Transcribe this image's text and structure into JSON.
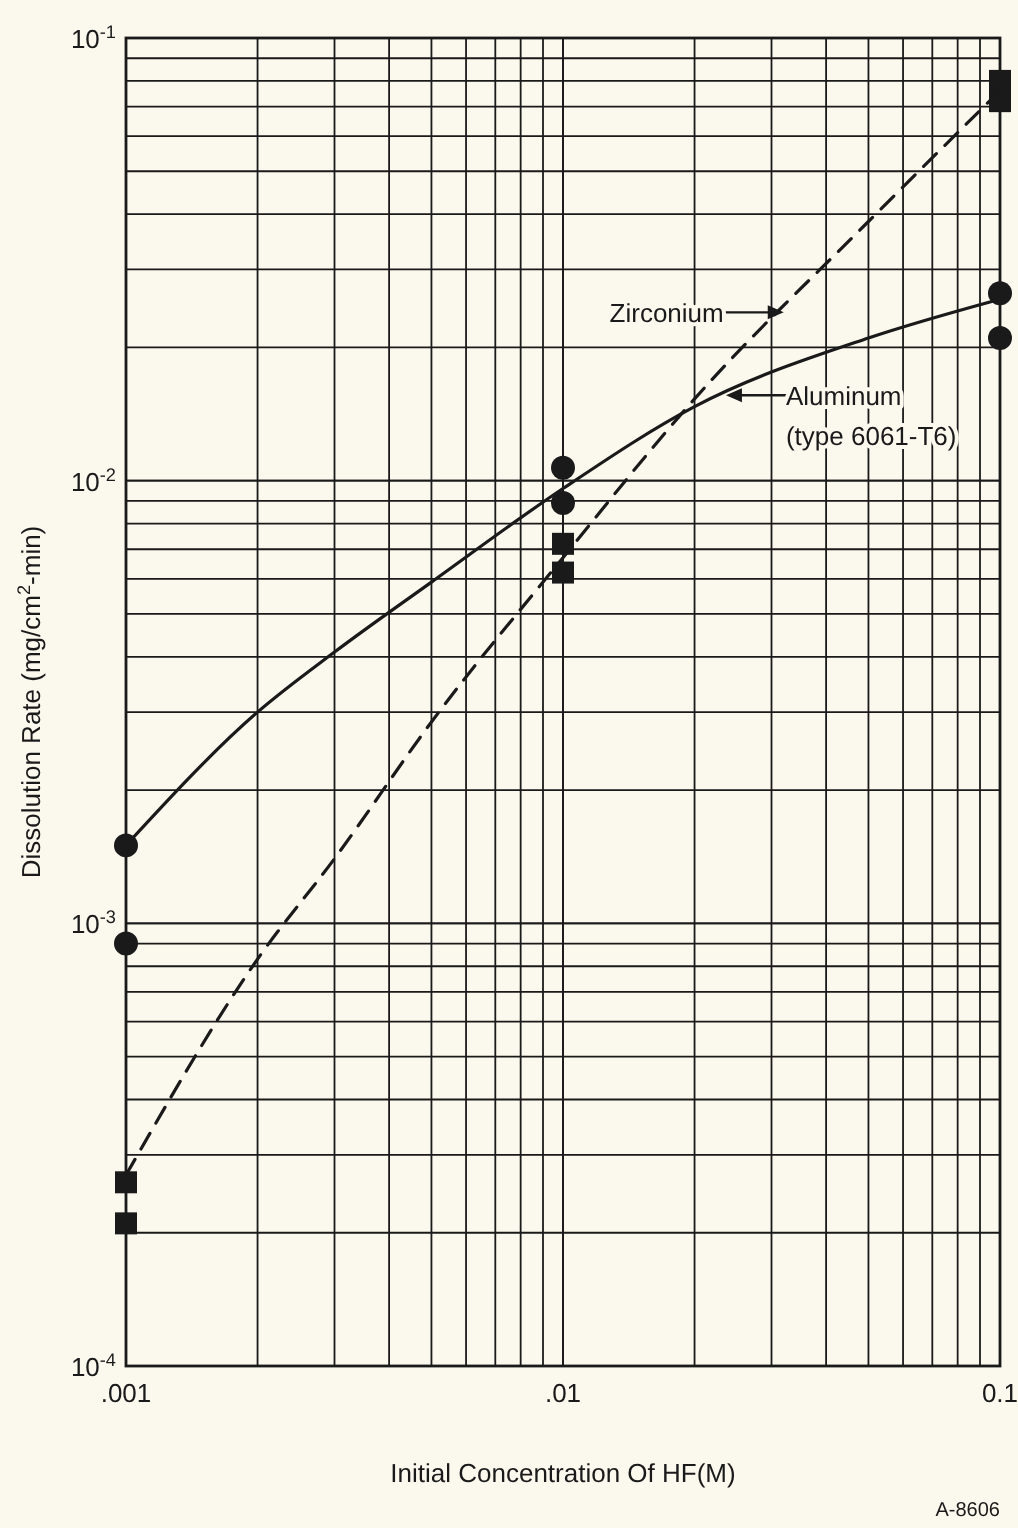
{
  "chart_data": {
    "type": "scatter",
    "xlabel": "Initial Concentration Of HF(M)",
    "ylabel": "Dissolution Rate (mg/cm$^{2}$-min)",
    "log": "xy",
    "grid": true,
    "xlim": [
      0.001,
      0.1
    ],
    "xticks": [
      {
        "value": 0.001,
        "label": ".001"
      },
      {
        "value": 0.01,
        "label": ".01"
      },
      {
        "value": 0.1,
        "label": "0.1"
      }
    ],
    "ylim": [
      0.0001,
      0.1
    ],
    "yticks": [
      {
        "value": 0.0001,
        "label": "10$^{-4}$"
      },
      {
        "value": 0.001,
        "label": "10$^{-3}$"
      },
      {
        "value": 0.01,
        "label": "10$^{-2}$"
      },
      {
        "value": 0.1,
        "label": "10$^{-1}$"
      }
    ],
    "series": [
      {
        "marker": "circle",
        "color": "#1a1a1a",
        "x": [
          0.001,
          0.001,
          0.01,
          0.01,
          0.1,
          0.1
        ],
        "values": [
          0.0015,
          0.0009,
          0.0107,
          0.0089,
          0.0265,
          0.021
        ]
      },
      {
        "type": "line",
        "line_style": "solid",
        "color": "#1a1a1a",
        "x": [
          0.001,
          0.002,
          0.003,
          0.005,
          0.01,
          0.02,
          0.05,
          0.1
        ],
        "values": [
          0.0015,
          0.003,
          0.0041,
          0.0059,
          0.0096,
          0.0147,
          0.021,
          0.0257
        ]
      },
      {
        "marker": "square",
        "color": "#1a1a1a",
        "x": [
          0.001,
          0.001,
          0.01,
          0.01,
          0.1,
          0.1
        ],
        "values": [
          0.00026,
          0.00021,
          0.0072,
          0.0062,
          0.08,
          0.072
        ]
      },
      {
        "type": "line",
        "line_style": "dashed",
        "color": "#1a1a1a",
        "x": [
          0.001,
          0.002,
          0.003,
          0.005,
          0.01,
          0.02,
          0.05,
          0.1
        ],
        "values": [
          0.00027,
          0.00083,
          0.0014,
          0.00285,
          0.0067,
          0.0153,
          0.0385,
          0.076
        ]
      }
    ],
    "annotations": [
      {
        "text": "Zirconium",
        "x": 0.032,
        "y": 0.024
      },
      {
        "text": "Aluminum\n(type 6061-T6)",
        "x": 0.0236,
        "y": 0.0156
      },
      "A-8606"
    ]
  }
}
